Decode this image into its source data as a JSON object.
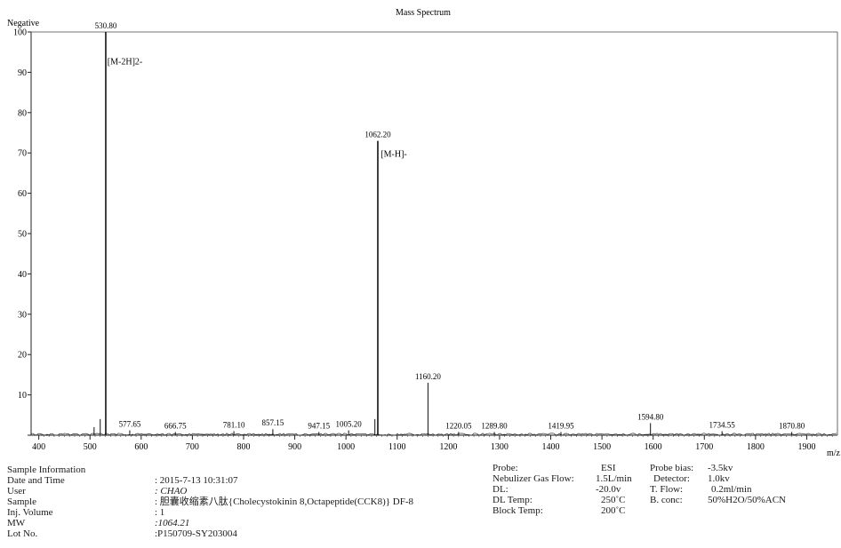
{
  "chart_data": {
    "type": "line",
    "title": "Mass Spectrum",
    "polarity": "Negative",
    "xlabel": "m/z",
    "ylabel": "",
    "xlim": [
      385,
      1960
    ],
    "ylim": [
      0,
      100
    ],
    "x_ticks": [
      400,
      500,
      600,
      700,
      800,
      900,
      1000,
      1100,
      1200,
      1300,
      1400,
      1500,
      1600,
      1700,
      1800,
      1900
    ],
    "y_ticks": [
      0,
      10,
      20,
      30,
      40,
      50,
      60,
      70,
      80,
      90,
      100
    ],
    "y_tick_labels": [
      "",
      "10",
      "20",
      "30",
      "40",
      "50",
      "60",
      "70",
      "80",
      "90",
      "100"
    ],
    "grid": false,
    "legend": "none",
    "peaks": [
      {
        "x": 508,
        "y": 2,
        "label": ""
      },
      {
        "x": 520,
        "y": 4,
        "label": ""
      },
      {
        "x": 530.8,
        "y": 100,
        "label": "530.80"
      },
      {
        "x": 577.65,
        "y": 1.2,
        "label": "577.65"
      },
      {
        "x": 666.75,
        "y": 0.8,
        "label": "666.75"
      },
      {
        "x": 781.1,
        "y": 1,
        "label": "781.10"
      },
      {
        "x": 857.15,
        "y": 1.5,
        "label": "857.15"
      },
      {
        "x": 947.15,
        "y": 0.8,
        "label": "947.15"
      },
      {
        "x": 1005.2,
        "y": 1.2,
        "label": "1005.20"
      },
      {
        "x": 1056.5,
        "y": 4,
        "label": ""
      },
      {
        "x": 1062.2,
        "y": 73,
        "label": "1062.20"
      },
      {
        "x": 1160.2,
        "y": 13,
        "label": "1160.20"
      },
      {
        "x": 1220.05,
        "y": 0.8,
        "label": "1220.05"
      },
      {
        "x": 1289.8,
        "y": 0.8,
        "label": "1289.80"
      },
      {
        "x": 1419.95,
        "y": 0.8,
        "label": "1419.95"
      },
      {
        "x": 1594.8,
        "y": 3,
        "label": "1594.80"
      },
      {
        "x": 1734.55,
        "y": 1,
        "label": "1734.55"
      },
      {
        "x": 1870.8,
        "y": 0.8,
        "label": "1870.80"
      }
    ],
    "annotations": [
      {
        "text": "[M-2H]2-",
        "x": 534,
        "y": 92
      },
      {
        "text": "[M-H]-",
        "x": 1068,
        "y": 69
      }
    ]
  },
  "sample_info": {
    "heading": "Sample Information",
    "rows": [
      {
        "label": "Date and Time",
        "value": ": 2015-7-13 10:31:07",
        "italic": false
      },
      {
        "label": "User",
        "value": ": CHAO",
        "italic": true
      },
      {
        "label": "Sample",
        "value": ": 胆囊收缩素八肽{Cholecystokinin 8,Octapeptide(CCK8)} DF-8",
        "italic": false
      },
      {
        "label": "Inj. Volume",
        "value": ": 1",
        "italic": false
      },
      {
        "label": "MW",
        "value": ":1064.21",
        "italic": true
      },
      {
        "label": "Lot No.",
        "value": ":P150709-SY203004",
        "italic": false
      }
    ]
  },
  "instrument": {
    "labels_a": [
      "Probe:",
      "Nebulizer Gas Flow:",
      "DL:",
      "DL Temp:",
      "Block Temp:"
    ],
    "values_a": [
      "ESI",
      "1.5L/min",
      "-20.0v",
      "250˚C",
      "200˚C"
    ],
    "labels_b": [
      "Probe bias:",
      "Detector:",
      "T. Flow:",
      "B. conc:"
    ],
    "values_b": [
      "-3.5kv",
      "1.0kv",
      "0.2ml/min",
      "50%H2O/50%ACN"
    ]
  }
}
